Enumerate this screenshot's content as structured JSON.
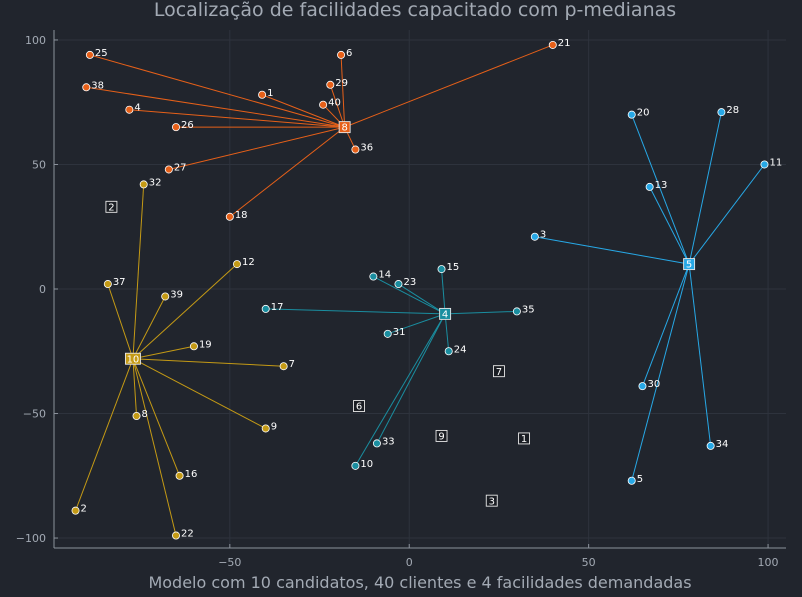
{
  "chart_data": {
    "type": "scatter",
    "title": "Localização de facilidades capacitado com p-medianas",
    "xlabel": "Modelo com 10 candidatos, 40 clientes e 4 facilidades demandadas",
    "ylabel": "",
    "xlim": [
      -99,
      105
    ],
    "ylim": [
      -104,
      104
    ],
    "x_ticks": [
      -50,
      0,
      50,
      100
    ],
    "y_ticks": [
      -100,
      -50,
      0,
      50,
      100
    ],
    "x_tick_labels": [
      "−50",
      "0",
      "50",
      "100"
    ],
    "y_tick_labels": [
      "−100",
      "−50",
      "0",
      "50",
      "100"
    ],
    "grid": true,
    "legend": "none",
    "colors": {
      "background": "#21252d",
      "plot_background": "#21252d",
      "grid": "#2e333d",
      "axis": "#8c929c",
      "text": "#a3aab4",
      "unassigned_facility": "#1a1d23"
    },
    "facilities": [
      {
        "id": "1",
        "x": 32,
        "y": -60,
        "open": false
      },
      {
        "id": "2",
        "x": -83,
        "y": 33,
        "open": false
      },
      {
        "id": "3",
        "x": 23,
        "y": -85,
        "open": false
      },
      {
        "id": "4",
        "x": 10,
        "y": -10,
        "open": true,
        "color": "#1a8ea0"
      },
      {
        "id": "5",
        "x": 78,
        "y": 10,
        "open": true,
        "color": "#27a8e6"
      },
      {
        "id": "6",
        "x": -14,
        "y": -47,
        "open": false
      },
      {
        "id": "7",
        "x": 25,
        "y": -33,
        "open": false
      },
      {
        "id": "8",
        "x": -18,
        "y": 65,
        "open": true,
        "color": "#e66019"
      },
      {
        "id": "9",
        "x": 9,
        "y": -59,
        "open": false
      },
      {
        "id": "10",
        "x": -77,
        "y": -28,
        "open": true,
        "color": "#c49a15"
      }
    ],
    "series": [
      {
        "facility": "8",
        "color": "#e66019",
        "points": [
          {
            "id": "25",
            "x": -89,
            "y": 94
          },
          {
            "id": "38",
            "x": -90,
            "y": 81
          },
          {
            "id": "4",
            "x": -78,
            "y": 72
          },
          {
            "id": "1",
            "x": -41,
            "y": 78
          },
          {
            "id": "6",
            "x": -19,
            "y": 94
          },
          {
            "id": "29",
            "x": -22,
            "y": 82
          },
          {
            "id": "40",
            "x": -24,
            "y": 74
          },
          {
            "id": "21",
            "x": 40,
            "y": 98
          },
          {
            "id": "26",
            "x": -65,
            "y": 65
          },
          {
            "id": "36",
            "x": -15,
            "y": 56
          },
          {
            "id": "27",
            "x": -67,
            "y": 48
          },
          {
            "id": "18",
            "x": -50,
            "y": 29
          }
        ]
      },
      {
        "facility": "5",
        "color": "#27a8e6",
        "points": [
          {
            "id": "20",
            "x": 62,
            "y": 70
          },
          {
            "id": "28",
            "x": 87,
            "y": 71
          },
          {
            "id": "11",
            "x": 99,
            "y": 50
          },
          {
            "id": "13",
            "x": 67,
            "y": 41
          },
          {
            "id": "3",
            "x": 35,
            "y": 21
          },
          {
            "id": "30",
            "x": 65,
            "y": -39
          },
          {
            "id": "34",
            "x": 84,
            "y": -63
          },
          {
            "id": "5",
            "x": 62,
            "y": -77
          }
        ]
      },
      {
        "facility": "4",
        "color": "#1a8ea0",
        "points": [
          {
            "id": "14",
            "x": -10,
            "y": 5
          },
          {
            "id": "23",
            "x": -3,
            "y": 2
          },
          {
            "id": "15",
            "x": 9,
            "y": 8
          },
          {
            "id": "17",
            "x": -40,
            "y": -8
          },
          {
            "id": "35",
            "x": 30,
            "y": -9
          },
          {
            "id": "31",
            "x": -6,
            "y": -18
          },
          {
            "id": "24",
            "x": 11,
            "y": -25
          },
          {
            "id": "33",
            "x": -9,
            "y": -62
          },
          {
            "id": "10",
            "x": -15,
            "y": -71
          }
        ]
      },
      {
        "facility": "10",
        "color": "#c49a15",
        "points": [
          {
            "id": "32",
            "x": -74,
            "y": 42
          },
          {
            "id": "12",
            "x": -48,
            "y": 10
          },
          {
            "id": "37",
            "x": -84,
            "y": 2
          },
          {
            "id": "39",
            "x": -68,
            "y": -3
          },
          {
            "id": "19",
            "x": -60,
            "y": -23
          },
          {
            "id": "7",
            "x": -35,
            "y": -31
          },
          {
            "id": "8",
            "x": -76,
            "y": -51
          },
          {
            "id": "9",
            "x": -40,
            "y": -56
          },
          {
            "id": "16",
            "x": -64,
            "y": -75
          },
          {
            "id": "2",
            "x": -93,
            "y": -89
          },
          {
            "id": "22",
            "x": -65,
            "y": -99
          }
        ]
      }
    ]
  }
}
